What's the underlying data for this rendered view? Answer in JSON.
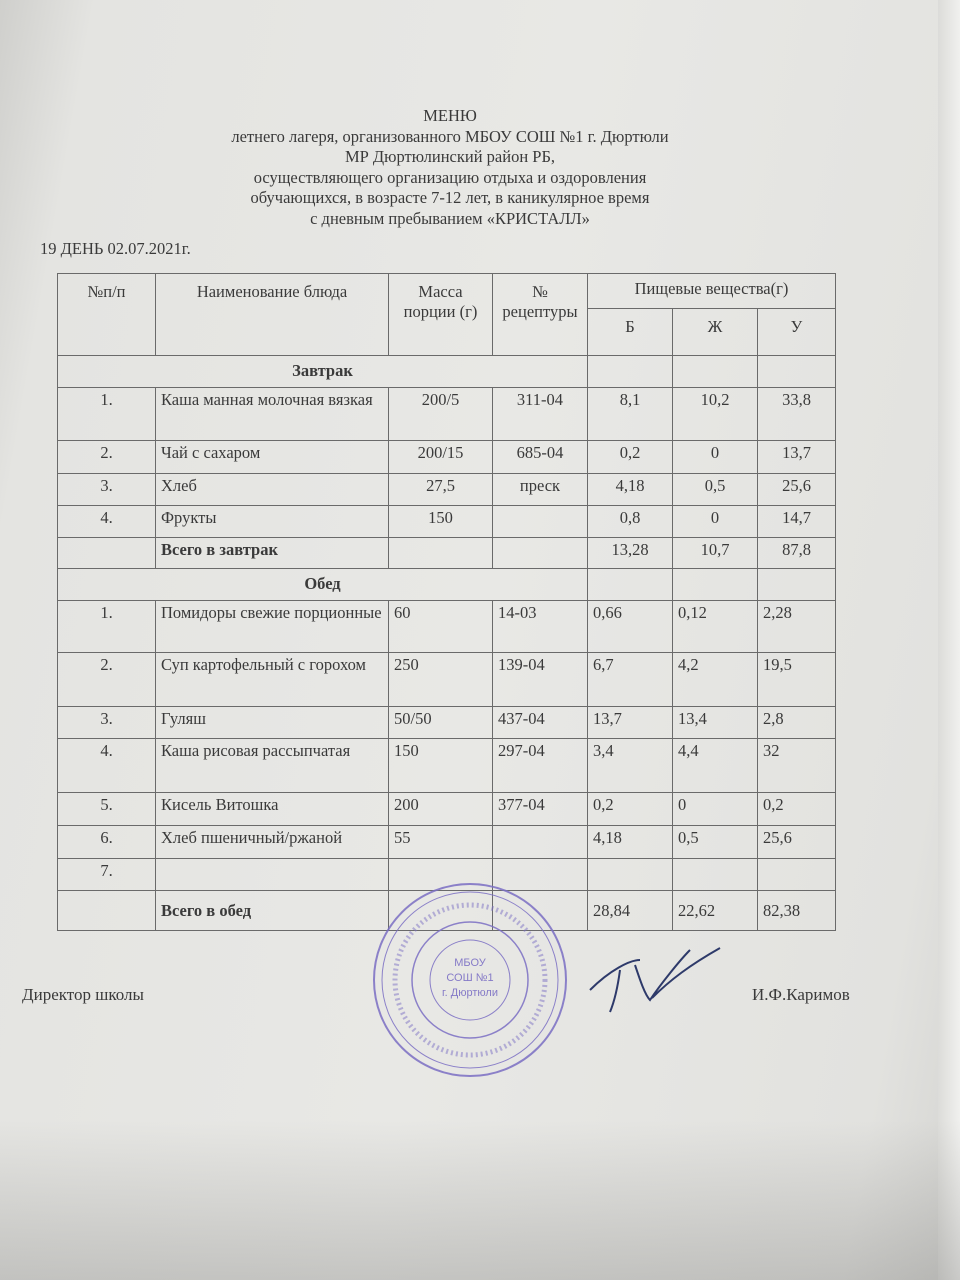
{
  "header": {
    "lines": [
      "МЕНЮ",
      "летнего лагеря, организованного МБОУ СОШ №1 г. Дюртюли",
      "МР Дюртюлинский район РБ,",
      "осуществляющего организацию отдыха и оздоровления",
      "обучающихся,  в возрасте 7-12 лет,  в каникулярное время",
      "с дневным пребыванием «КРИСТАЛЛ»"
    ],
    "day": "19  ДЕНЬ 02.07.2021г."
  },
  "table": {
    "columns": {
      "num": "№п/п",
      "name": "Наименование блюда",
      "mass": "Масса порции (г)",
      "recipe": "№ рецептуры",
      "nutrients": "Пищевые вещества(г)",
      "b": "Б",
      "zh": "Ж",
      "u": "У"
    },
    "breakfast": {
      "title": "Завтрак",
      "rows": [
        {
          "num": "1.",
          "name": "Каша манная молочная вязкая",
          "mass": "200/5",
          "recipe": "311-04",
          "b": "8,1",
          "zh": "10,2",
          "u": "33,8"
        },
        {
          "num": "2.",
          "name": "Чай с сахаром",
          "mass": "200/15",
          "recipe": "685-04",
          "b": "0,2",
          "zh": "0",
          "u": "13,7"
        },
        {
          "num": "3.",
          "name": "Хлеб",
          "mass": "27,5",
          "recipe": "преск",
          "b": "4,18",
          "zh": "0,5",
          "u": "25,6"
        },
        {
          "num": "4.",
          "name": "Фрукты",
          "mass": "150",
          "recipe": "",
          "b": "0,8",
          "zh": "0",
          "u": "14,7"
        }
      ],
      "total": {
        "label": "Всего в завтрак",
        "b": "13,28",
        "zh": "10,7",
        "u": "87,8"
      }
    },
    "lunch": {
      "title": "Обед",
      "rows": [
        {
          "num": "1.",
          "name": "Помидоры свежие порционные",
          "mass": "60",
          "recipe": "14-03",
          "b": "0,66",
          "zh": "0,12",
          "u": "2,28"
        },
        {
          "num": "2.",
          "name": "Суп картофельный с горохом",
          "mass": "250",
          "recipe": "139-04",
          "b": "6,7",
          "zh": "4,2",
          "u": "19,5"
        },
        {
          "num": "3.",
          "name": "Гуляш",
          "mass": "50/50",
          "recipe": "437-04",
          "b": "13,7",
          "zh": "13,4",
          "u": "2,8"
        },
        {
          "num": "4.",
          "name": "Каша рисовая рассыпчатая",
          "mass": "150",
          "recipe": "297-04",
          "b": "3,4",
          "zh": "4,4",
          "u": "32"
        },
        {
          "num": "5.",
          "name": "Кисель Витошка",
          "mass": "200",
          "recipe": "377-04",
          "b": "0,2",
          "zh": "0",
          "u": "0,2"
        },
        {
          "num": "6.",
          "name": "Хлеб пшеничный/ржаной",
          "mass": "55",
          "recipe": "",
          "b": "4,18",
          "zh": "0,5",
          "u": "25,6"
        },
        {
          "num": "7.",
          "name": "",
          "mass": "",
          "recipe": "",
          "b": "",
          "zh": "",
          "u": ""
        }
      ],
      "total": {
        "label": "Всего в обед",
        "b": "28,84",
        "zh": "22,62",
        "u": "82,38"
      }
    }
  },
  "footer": {
    "position": "Директор школы",
    "name": "И.Ф.Каримов"
  },
  "stamp": {
    "center_lines": [
      "МБОУ",
      "СОШ №1",
      "г. Дюртюли"
    ],
    "color": "#7b6fc4"
  }
}
